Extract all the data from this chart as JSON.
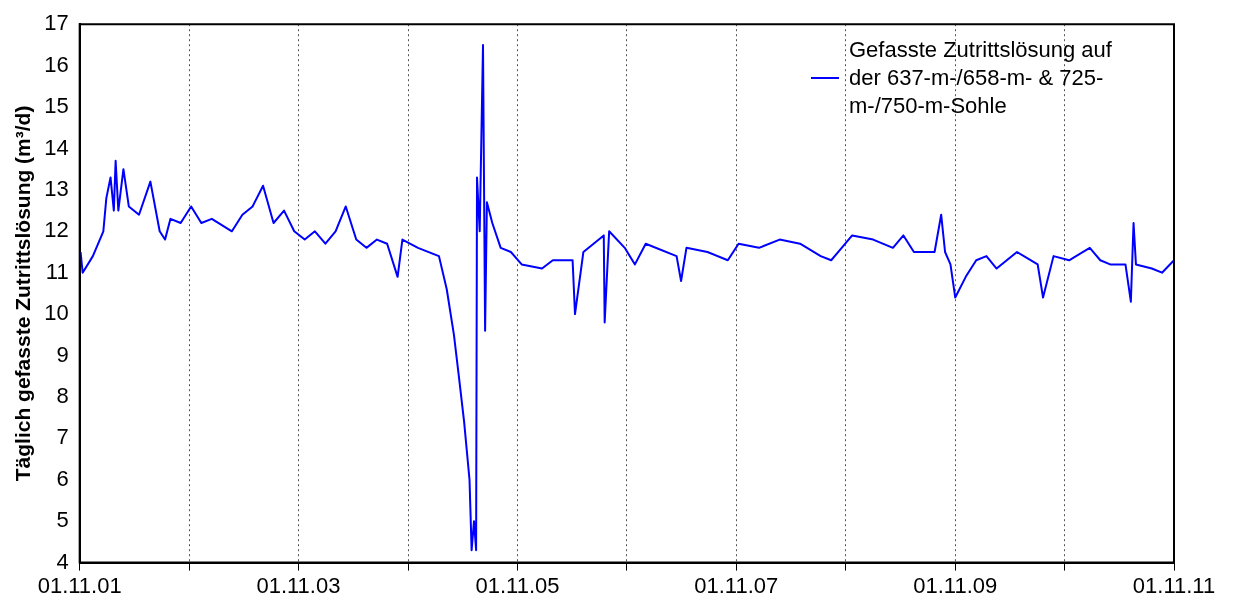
{
  "chart_data": {
    "type": "line",
    "ylabel": "Täglich gefasste Zutrittslösung (m³/d)",
    "ylim": [
      4,
      17
    ],
    "yticks": [
      4,
      5,
      6,
      7,
      8,
      9,
      10,
      11,
      12,
      13,
      14,
      15,
      16,
      17
    ],
    "xlim": [
      "2001-11-01",
      "2011-11-01"
    ],
    "xticks": [
      {
        "value": "2001-11-01",
        "label": "01.11.01"
      },
      {
        "value": "2002-11-01",
        "label": null
      },
      {
        "value": "2003-11-01",
        "label": "01.11.03"
      },
      {
        "value": "2004-11-01",
        "label": null
      },
      {
        "value": "2005-11-01",
        "label": "01.11.05"
      },
      {
        "value": "2006-11-01",
        "label": null
      },
      {
        "value": "2007-11-01",
        "label": "01.11.07"
      },
      {
        "value": "2008-11-01",
        "label": null
      },
      {
        "value": "2009-11-01",
        "label": "01.11.09"
      },
      {
        "value": "2010-11-01",
        "label": null
      },
      {
        "value": "2011-11-01",
        "label": "01.11.11"
      }
    ],
    "grid": "x",
    "legend": "top right",
    "marker": "none",
    "line_style": "solid",
    "series": [
      {
        "name": "Gefasste Zutrittslösung auf der 637-m-/658-m- & 725-m-/750-m-Sohle",
        "color": "#0000ff",
        "x": [
          "2001-11-04",
          "2001-11-11",
          "2001-12-15",
          "2002-01-19",
          "2002-01-29",
          "2002-02-12",
          "2002-02-23",
          "2002-03-01",
          "2002-03-10",
          "2002-03-27",
          "2002-04-14",
          "2002-05-18",
          "2002-06-25",
          "2002-07-26",
          "2002-08-13",
          "2002-08-31",
          "2002-10-04",
          "2002-11-08",
          "2002-12-12",
          "2003-01-16",
          "2003-03-24",
          "2003-04-28",
          "2003-06-01",
          "2003-07-06",
          "2003-08-10",
          "2003-09-14",
          "2003-10-18",
          "2003-11-22",
          "2003-12-26",
          "2004-01-30",
          "2004-03-04",
          "2004-04-07",
          "2004-05-12",
          "2004-06-15",
          "2004-07-20",
          "2004-08-23",
          "2004-09-27",
          "2004-10-13",
          "2004-12-04",
          "2005-02-12",
          "2005-03-10",
          "2005-04-03",
          "2005-04-21",
          "2005-05-07",
          "2005-05-25",
          "2005-06-01",
          "2005-06-09",
          "2005-06-16",
          "2005-06-19",
          "2005-06-28",
          "2005-07-09",
          "2005-07-16",
          "2005-07-22",
          "2005-08-09",
          "2005-09-06",
          "2005-10-10",
          "2005-11-15",
          "2006-01-22",
          "2006-02-27",
          "2006-05-04",
          "2006-05-12",
          "2006-06-09",
          "2006-07-13",
          "2006-08-16",
          "2006-08-19",
          "2006-09-03",
          "2006-10-25",
          "2006-11-28",
          "2007-01-03",
          "2007-04-16",
          "2007-05-01",
          "2007-05-19",
          "2007-07-28",
          "2007-10-04",
          "2007-11-09",
          "2008-01-16",
          "2008-03-25",
          "2008-06-01",
          "2008-08-09",
          "2008-09-13",
          "2008-10-18",
          "2008-11-22",
          "2009-01-31",
          "2009-04-07",
          "2009-05-12",
          "2009-06-16",
          "2009-08-24",
          "2009-09-15",
          "2009-09-28",
          "2009-10-16",
          "2009-11-01",
          "2009-12-06",
          "2010-01-10",
          "2010-02-13",
          "2010-03-19",
          "2010-05-26",
          "2010-08-03",
          "2010-08-21",
          "2010-09-25",
          "2010-11-16",
          "2011-01-24",
          "2011-02-28",
          "2011-04-02",
          "2011-05-23",
          "2011-06-10",
          "2011-06-19",
          "2011-06-27",
          "2011-08-19",
          "2011-09-22",
          "2011-11-01"
        ],
        "values": [
          11.5,
          11.0,
          11.4,
          12.0,
          12.8,
          13.3,
          12.5,
          13.7,
          12.5,
          13.5,
          12.6,
          12.4,
          13.2,
          12.0,
          11.8,
          12.3,
          12.2,
          12.6,
          12.2,
          12.3,
          12.0,
          12.4,
          12.6,
          13.1,
          12.2,
          12.5,
          12.0,
          11.8,
          12.0,
          11.7,
          12.0,
          12.6,
          11.8,
          11.6,
          11.8,
          11.7,
          10.9,
          11.8,
          11.6,
          11.4,
          10.6,
          9.5,
          8.4,
          7.4,
          6.0,
          4.3,
          5.0,
          4.3,
          13.3,
          12.0,
          16.5,
          9.6,
          12.7,
          12.2,
          11.6,
          11.5,
          11.2,
          11.1,
          11.3,
          11.3,
          10.0,
          11.5,
          11.7,
          11.9,
          9.8,
          12.0,
          11.6,
          11.2,
          11.7,
          11.4,
          10.8,
          11.6,
          11.5,
          11.3,
          11.7,
          11.6,
          11.8,
          11.7,
          11.4,
          11.3,
          11.6,
          11.9,
          11.8,
          11.6,
          11.9,
          11.5,
          11.5,
          12.4,
          11.5,
          11.2,
          10.4,
          10.9,
          11.3,
          11.4,
          11.1,
          11.5,
          11.2,
          10.4,
          11.4,
          11.3,
          11.6,
          11.3,
          11.2,
          11.2,
          10.3,
          12.2,
          11.2,
          11.1,
          11.0,
          11.3
        ]
      }
    ]
  }
}
